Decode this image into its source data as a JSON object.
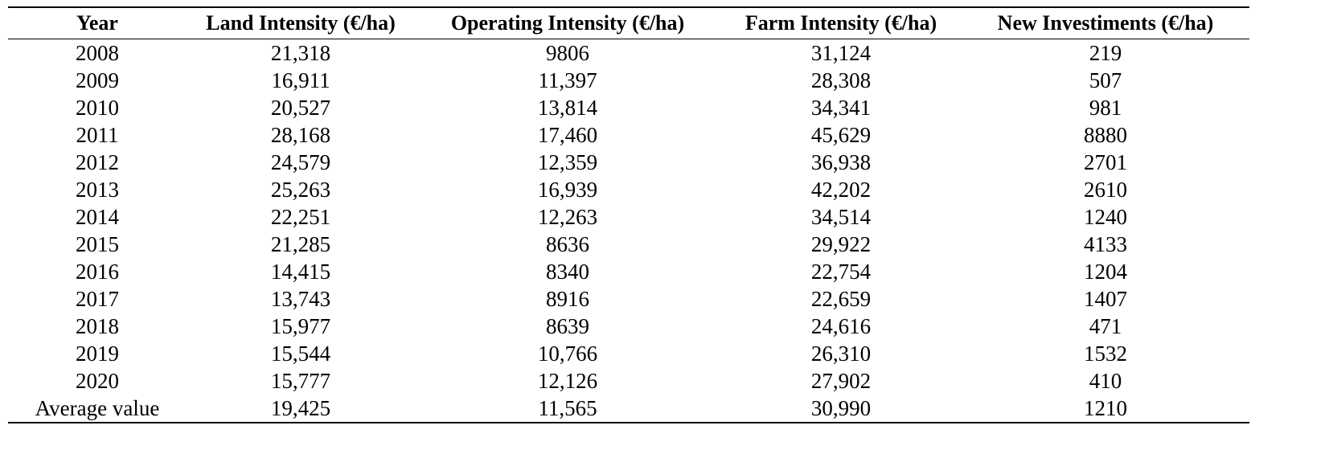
{
  "table": {
    "headers": [
      "Year",
      "Land Intensity (€/ha)",
      "Operating Intensity (€/ha)",
      "Farm Intensity (€/ha)",
      "New Investiments (€/ha)"
    ],
    "rows": [
      [
        "2008",
        "21,318",
        "9806",
        "31,124",
        "219"
      ],
      [
        "2009",
        "16,911",
        "11,397",
        "28,308",
        "507"
      ],
      [
        "2010",
        "20,527",
        "13,814",
        "34,341",
        "981"
      ],
      [
        "2011",
        "28,168",
        "17,460",
        "45,629",
        "8880"
      ],
      [
        "2012",
        "24,579",
        "12,359",
        "36,938",
        "2701"
      ],
      [
        "2013",
        "25,263",
        "16,939",
        "42,202",
        "2610"
      ],
      [
        "2014",
        "22,251",
        "12,263",
        "34,514",
        "1240"
      ],
      [
        "2015",
        "21,285",
        "8636",
        "29,922",
        "4133"
      ],
      [
        "2016",
        "14,415",
        "8340",
        "22,754",
        "1204"
      ],
      [
        "2017",
        "13,743",
        "8916",
        "22,659",
        "1407"
      ],
      [
        "2018",
        "15,977",
        "8639",
        "24,616",
        "471"
      ],
      [
        "2019",
        "15,544",
        "10,766",
        "26,310",
        "1532"
      ],
      [
        "2020",
        "15,777",
        "12,126",
        "27,902",
        "410"
      ],
      [
        "Average value",
        "19,425",
        "11,565",
        "30,990",
        "1210"
      ]
    ]
  }
}
